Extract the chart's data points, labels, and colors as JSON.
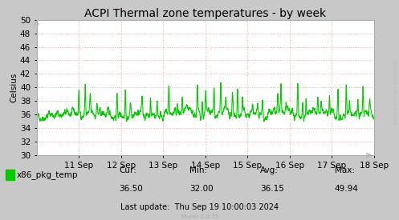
{
  "title": "ACPI Thermal zone temperatures - by week",
  "ylabel": "Celsius",
  "ylim": [
    30,
    50
  ],
  "line_color": "#00cc00",
  "line_width": 0.8,
  "bg_color": "#c8c8c8",
  "plot_bg_color": "#ffffff",
  "grid_color": "#ff9999",
  "grid_style": ":",
  "border_color": "#aaaaaa",
  "legend_label": "x86_pkg_temp",
  "legend_color": "#00cc00",
  "stats_cur": "36.50",
  "stats_min": "32.00",
  "stats_avg": "36.15",
  "stats_max": "49.94",
  "last_update": "Last update:  Thu Sep 19 10:00:03 2024",
  "munin_version": "Munin 2.0.75",
  "rrdtool_label": "RRDTOOL / TOBI OETIKER",
  "x_tick_labels": [
    "11 Sep",
    "12 Sep",
    "13 Sep",
    "14 Sep",
    "15 Sep",
    "16 Sep",
    "17 Sep",
    "18 Sep"
  ],
  "title_fontsize": 10,
  "axis_fontsize": 7.5,
  "stats_fontsize": 7.5,
  "seed": 42,
  "n_points": 2016,
  "base_temp": 36.0,
  "noise_scale": 0.18,
  "mean_rev": 0.08
}
